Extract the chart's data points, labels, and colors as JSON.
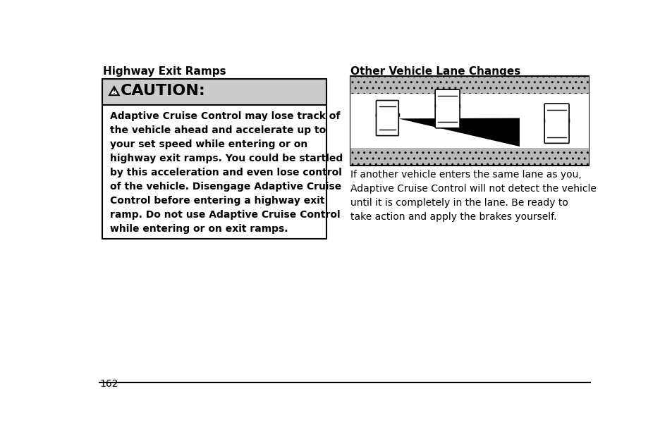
{
  "bg_color": "#ffffff",
  "page_number": "162",
  "left_heading": "Highway Exit Ramps",
  "right_heading": "Other Vehicle Lane Changes",
  "caution_header_bg": "#cccccc",
  "caution_body_text": "Adaptive Cruise Control may lose track of\nthe vehicle ahead and accelerate up to\nyour set speed while entering or on\nhighway exit ramps. You could be startled\nby this acceleration and even lose control\nof the vehicle. Disengage Adaptive Cruise\nControl before entering a highway exit\nramp. Do not use Adaptive Cruise Control\nwhile entering or on exit ramps.",
  "right_body_text": "If another vehicle enters the same lane as you,\nAdaptive Cruise Control will not detect the vehicle\nuntil it is completely in the lane. Be ready to\ntake action and apply the brakes yourself.",
  "box_border_color": "#000000",
  "text_color": "#000000",
  "heading_fontsize": 11,
  "caution_header_fontsize": 16,
  "body_fontsize": 10,
  "page_num_fontsize": 10
}
